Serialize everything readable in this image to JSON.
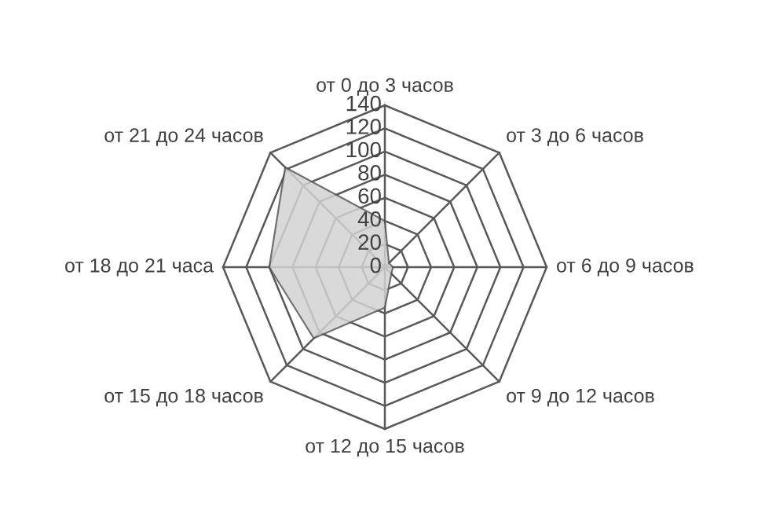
{
  "chart_data": {
    "type": "radar",
    "categories": [
      "от 0 до 3 часов",
      "от 3 до 6 часов",
      "от 6 до 9 часов",
      "от 9 до 12 часов",
      "от 12 до 15 часов",
      "от 15 до 18 часов",
      "от 18 до 21 часа",
      "от 21 до 24 часов"
    ],
    "series": [
      {
        "color": "#d3d3d3",
        "values": [
          40,
          5,
          7,
          8,
          35,
          87,
          100,
          122
        ]
      }
    ],
    "ylim": [
      0,
      140
    ],
    "yticks": [
      0,
      20,
      40,
      60,
      80,
      100,
      120,
      140
    ],
    "grid": true
  }
}
